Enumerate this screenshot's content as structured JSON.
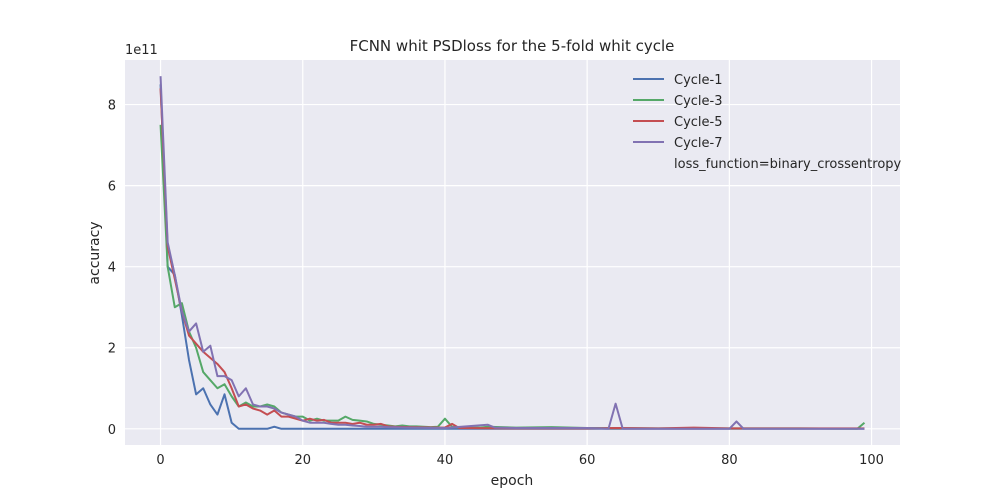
{
  "chart_data": {
    "type": "line",
    "title": "FCNN whit PSDloss for the 5-fold whit cycle",
    "xlabel": "epoch",
    "ylabel": "accuracy",
    "offset_text": "1e11",
    "xlim": [
      -5,
      104
    ],
    "ylim": [
      -0.4,
      9.1
    ],
    "y_unit_multiplier": 100000000000,
    "x_ticks": [
      0,
      20,
      40,
      60,
      80,
      100
    ],
    "y_ticks": [
      0,
      2,
      4,
      6,
      8
    ],
    "grid": true,
    "legend_position": "top-right",
    "legend_note": "loss_function=binary_crossentropy",
    "background_color": "#eaeaf2",
    "series": [
      {
        "name": "Cycle-1",
        "color": "#4c72b0",
        "points": [
          [
            0,
            8.5
          ],
          [
            1,
            4.0
          ],
          [
            2,
            3.8
          ],
          [
            3,
            2.8
          ],
          [
            4,
            1.7
          ],
          [
            5,
            0.85
          ],
          [
            6,
            1.0
          ],
          [
            7,
            0.6
          ],
          [
            8,
            0.35
          ],
          [
            9,
            0.85
          ],
          [
            10,
            0.15
          ],
          [
            11,
            0.0
          ],
          [
            12,
            0.0
          ],
          [
            14,
            0.0
          ],
          [
            15,
            0.0
          ],
          [
            16,
            0.05
          ],
          [
            17,
            0.0
          ],
          [
            20,
            0.0
          ],
          [
            25,
            0.0
          ],
          [
            30,
            0.0
          ],
          [
            40,
            0.0
          ],
          [
            50,
            0.0
          ],
          [
            60,
            0.0
          ],
          [
            70,
            0.0
          ],
          [
            80,
            0.0
          ],
          [
            90,
            0.0
          ],
          [
            99,
            0.0
          ]
        ]
      },
      {
        "name": "Cycle-3",
        "color": "#55a868",
        "points": [
          [
            0,
            7.5
          ],
          [
            1,
            4.0
          ],
          [
            2,
            3.0
          ],
          [
            3,
            3.1
          ],
          [
            4,
            2.4
          ],
          [
            5,
            2.0
          ],
          [
            6,
            1.4
          ],
          [
            7,
            1.2
          ],
          [
            8,
            1.0
          ],
          [
            9,
            1.1
          ],
          [
            10,
            0.8
          ],
          [
            11,
            0.55
          ],
          [
            12,
            0.65
          ],
          [
            13,
            0.55
          ],
          [
            14,
            0.55
          ],
          [
            15,
            0.6
          ],
          [
            16,
            0.55
          ],
          [
            17,
            0.4
          ],
          [
            18,
            0.35
          ],
          [
            19,
            0.3
          ],
          [
            20,
            0.3
          ],
          [
            21,
            0.2
          ],
          [
            22,
            0.25
          ],
          [
            23,
            0.2
          ],
          [
            24,
            0.2
          ],
          [
            25,
            0.2
          ],
          [
            26,
            0.3
          ],
          [
            27,
            0.22
          ],
          [
            28,
            0.2
          ],
          [
            29,
            0.18
          ],
          [
            30,
            0.12
          ],
          [
            31,
            0.1
          ],
          [
            32,
            0.08
          ],
          [
            33,
            0.06
          ],
          [
            34,
            0.08
          ],
          [
            35,
            0.06
          ],
          [
            36,
            0.06
          ],
          [
            37,
            0.05
          ],
          [
            38,
            0.04
          ],
          [
            39,
            0.05
          ],
          [
            40,
            0.25
          ],
          [
            41,
            0.05
          ],
          [
            42,
            0.03
          ],
          [
            45,
            0.03
          ],
          [
            46,
            0.05
          ],
          [
            50,
            0.03
          ],
          [
            55,
            0.04
          ],
          [
            60,
            0.02
          ],
          [
            70,
            0.01
          ],
          [
            80,
            0.01
          ],
          [
            90,
            0.01
          ],
          [
            98,
            0.0
          ],
          [
            99,
            0.15
          ]
        ]
      },
      {
        "name": "Cycle-5",
        "color": "#c44e52",
        "points": [
          [
            0,
            8.4
          ],
          [
            1,
            4.5
          ],
          [
            2,
            3.7
          ],
          [
            3,
            2.9
          ],
          [
            4,
            2.3
          ],
          [
            5,
            2.1
          ],
          [
            6,
            1.9
          ],
          [
            7,
            1.75
          ],
          [
            8,
            1.6
          ],
          [
            9,
            1.4
          ],
          [
            10,
            1.0
          ],
          [
            11,
            0.55
          ],
          [
            12,
            0.6
          ],
          [
            13,
            0.5
          ],
          [
            14,
            0.45
          ],
          [
            15,
            0.35
          ],
          [
            16,
            0.45
          ],
          [
            17,
            0.3
          ],
          [
            18,
            0.3
          ],
          [
            19,
            0.25
          ],
          [
            20,
            0.2
          ],
          [
            21,
            0.25
          ],
          [
            22,
            0.2
          ],
          [
            23,
            0.22
          ],
          [
            24,
            0.15
          ],
          [
            25,
            0.15
          ],
          [
            26,
            0.15
          ],
          [
            27,
            0.12
          ],
          [
            28,
            0.15
          ],
          [
            29,
            0.1
          ],
          [
            30,
            0.1
          ],
          [
            31,
            0.12
          ],
          [
            32,
            0.06
          ],
          [
            33,
            0.05
          ],
          [
            35,
            0.04
          ],
          [
            40,
            0.03
          ],
          [
            41,
            0.12
          ],
          [
            42,
            0.02
          ],
          [
            50,
            0.01
          ],
          [
            60,
            0.01
          ],
          [
            64,
            0.02
          ],
          [
            70,
            0.01
          ],
          [
            75,
            0.03
          ],
          [
            80,
            0.01
          ],
          [
            90,
            0.01
          ],
          [
            99,
            0.01
          ]
        ]
      },
      {
        "name": "Cycle-7",
        "color": "#8172b2",
        "points": [
          [
            0,
            8.7
          ],
          [
            1,
            4.6
          ],
          [
            2,
            3.8
          ],
          [
            3,
            2.9
          ],
          [
            4,
            2.4
          ],
          [
            5,
            2.6
          ],
          [
            6,
            1.9
          ],
          [
            7,
            2.05
          ],
          [
            8,
            1.3
          ],
          [
            9,
            1.3
          ],
          [
            10,
            1.2
          ],
          [
            11,
            0.8
          ],
          [
            12,
            1.0
          ],
          [
            13,
            0.6
          ],
          [
            14,
            0.55
          ],
          [
            15,
            0.55
          ],
          [
            16,
            0.5
          ],
          [
            17,
            0.4
          ],
          [
            18,
            0.35
          ],
          [
            19,
            0.3
          ],
          [
            20,
            0.2
          ],
          [
            21,
            0.15
          ],
          [
            22,
            0.15
          ],
          [
            23,
            0.15
          ],
          [
            24,
            0.12
          ],
          [
            25,
            0.1
          ],
          [
            26,
            0.1
          ],
          [
            27,
            0.08
          ],
          [
            28,
            0.07
          ],
          [
            29,
            0.05
          ],
          [
            30,
            0.05
          ],
          [
            31,
            0.05
          ],
          [
            32,
            0.04
          ],
          [
            35,
            0.03
          ],
          [
            40,
            0.02
          ],
          [
            46,
            0.1
          ],
          [
            47,
            0.03
          ],
          [
            50,
            0.02
          ],
          [
            60,
            0.02
          ],
          [
            63,
            0.0
          ],
          [
            64,
            0.62
          ],
          [
            65,
            0.0
          ],
          [
            70,
            0.0
          ],
          [
            80,
            0.0
          ],
          [
            81,
            0.18
          ],
          [
            82,
            0.0
          ],
          [
            90,
            0.0
          ],
          [
            99,
            0.0
          ]
        ]
      }
    ]
  }
}
